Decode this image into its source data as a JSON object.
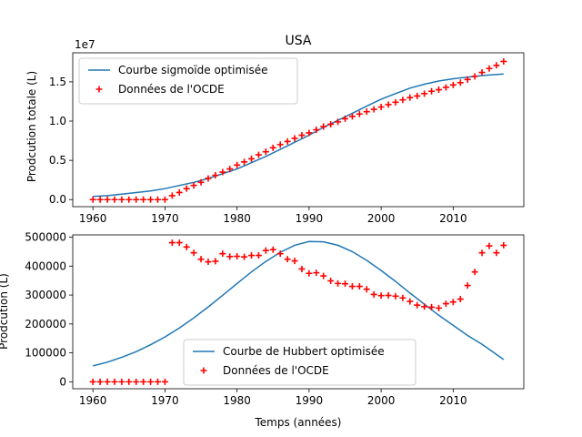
{
  "figure_title": "USA",
  "chart_data": [
    {
      "type": "line",
      "title": "USA",
      "xlabel": "",
      "ylabel": "Prodcution totale (L)",
      "y_multiplier_label": "1e7",
      "xlim": [
        1957.2,
        2019.8
      ],
      "ylim": [
        -0.09,
        1.87
      ],
      "y_unit_scale": 10000000,
      "xticks": [
        1960,
        1970,
        1980,
        1990,
        2000,
        2010
      ],
      "yticks": [
        0.0,
        0.5,
        1.0,
        1.5
      ],
      "ytick_labels": [
        "0.0",
        "0.5",
        "1.0",
        "1.5"
      ],
      "legend_position": "upper-left",
      "grid": false,
      "series": [
        {
          "name": "Courbe sigmoïde optimisée",
          "kind": "line",
          "color": "#1f77b4",
          "x": [
            1960,
            1962,
            1964,
            1966,
            1968,
            1970,
            1972,
            1974,
            1976,
            1978,
            1980,
            1982,
            1984,
            1986,
            1988,
            1990,
            1992,
            1994,
            1996,
            1998,
            2000,
            2002,
            2004,
            2006,
            2008,
            2010,
            2012,
            2014,
            2017
          ],
          "y": [
            0.04,
            0.05,
            0.07,
            0.09,
            0.11,
            0.14,
            0.18,
            0.22,
            0.27,
            0.33,
            0.39,
            0.47,
            0.55,
            0.64,
            0.73,
            0.82,
            0.92,
            1.01,
            1.1,
            1.19,
            1.28,
            1.35,
            1.42,
            1.47,
            1.51,
            1.54,
            1.56,
            1.58,
            1.6
          ]
        },
        {
          "name": "Données de l'OCDE",
          "kind": "marker",
          "marker": "+",
          "color": "#ff0000",
          "x": [
            1960,
            1961,
            1962,
            1963,
            1964,
            1965,
            1966,
            1967,
            1968,
            1969,
            1970,
            1971,
            1972,
            1973,
            1974,
            1975,
            1976,
            1977,
            1978,
            1979,
            1980,
            1981,
            1982,
            1983,
            1984,
            1985,
            1986,
            1987,
            1988,
            1989,
            1990,
            1991,
            1992,
            1993,
            1994,
            1995,
            1996,
            1997,
            1998,
            1999,
            2000,
            2001,
            2002,
            2003,
            2004,
            2005,
            2006,
            2007,
            2008,
            2009,
            2010,
            2011,
            2012,
            2013,
            2014,
            2015,
            2016,
            2017
          ],
          "y": [
            0.0,
            0.0,
            0.0,
            0.0,
            0.0,
            0.0,
            0.0,
            0.0,
            0.0,
            0.0,
            0.0,
            0.05,
            0.09,
            0.14,
            0.18,
            0.22,
            0.27,
            0.31,
            0.35,
            0.39,
            0.44,
            0.48,
            0.52,
            0.57,
            0.61,
            0.66,
            0.7,
            0.74,
            0.78,
            0.82,
            0.85,
            0.89,
            0.93,
            0.96,
            0.99,
            1.03,
            1.06,
            1.09,
            1.12,
            1.15,
            1.18,
            1.21,
            1.24,
            1.27,
            1.3,
            1.32,
            1.35,
            1.38,
            1.4,
            1.43,
            1.46,
            1.49,
            1.53,
            1.57,
            1.62,
            1.67,
            1.71,
            1.76
          ]
        }
      ]
    },
    {
      "type": "line",
      "title": "",
      "xlabel": "Temps (années)",
      "ylabel": "Prodcution (L)",
      "xlim": [
        1957.2,
        2019.8
      ],
      "ylim": [
        -24000,
        508000
      ],
      "xticks": [
        1960,
        1970,
        1980,
        1990,
        2000,
        2010
      ],
      "yticks": [
        0,
        100000,
        200000,
        300000,
        400000,
        500000
      ],
      "ytick_labels": [
        "0",
        "100000",
        "200000",
        "300000",
        "400000",
        "500000"
      ],
      "legend_position": "lower-center",
      "grid": false,
      "series": [
        {
          "name": "Courbe de Hubbert optimisée",
          "kind": "line",
          "color": "#1f77b4",
          "x": [
            1960,
            1962,
            1964,
            1966,
            1968,
            1970,
            1972,
            1974,
            1976,
            1978,
            1980,
            1982,
            1984,
            1986,
            1988,
            1990,
            1992,
            1994,
            1996,
            1998,
            2000,
            2002,
            2004,
            2006,
            2008,
            2010,
            2012,
            2014,
            2017
          ],
          "y": [
            55000,
            68000,
            85000,
            104000,
            128000,
            155000,
            186000,
            221000,
            259000,
            299000,
            340000,
            380000,
            416000,
            448000,
            472000,
            485000,
            484000,
            472000,
            450000,
            420000,
            385000,
            347000,
            307000,
            268000,
            230000,
            195000,
            160000,
            130000,
            77000
          ]
        },
        {
          "name": "Données de l'OCDE",
          "kind": "marker",
          "marker": "+",
          "color": "#ff0000",
          "x": [
            1960,
            1961,
            1962,
            1963,
            1964,
            1965,
            1966,
            1967,
            1968,
            1969,
            1970,
            1971,
            1972,
            1973,
            1974,
            1975,
            1976,
            1977,
            1978,
            1979,
            1980,
            1981,
            1982,
            1983,
            1984,
            1985,
            1986,
            1987,
            1988,
            1989,
            1990,
            1991,
            1992,
            1993,
            1994,
            1995,
            1996,
            1997,
            1998,
            1999,
            2000,
            2001,
            2002,
            2003,
            2004,
            2005,
            2006,
            2007,
            2008,
            2009,
            2010,
            2011,
            2012,
            2013,
            2014,
            2015,
            2016,
            2017
          ],
          "y": [
            0,
            0,
            0,
            0,
            0,
            0,
            0,
            0,
            0,
            0,
            0,
            481000,
            481000,
            466000,
            446000,
            424000,
            415000,
            417000,
            443000,
            433000,
            434000,
            432000,
            437000,
            437000,
            454000,
            457000,
            443000,
            424000,
            418000,
            390000,
            375000,
            377000,
            366000,
            349000,
            340000,
            339000,
            330000,
            330000,
            320000,
            302000,
            298000,
            299000,
            296000,
            290000,
            278000,
            265000,
            260000,
            258000,
            255000,
            270000,
            276000,
            286000,
            333000,
            380000,
            446000,
            470000,
            446000,
            472000
          ]
        }
      ]
    }
  ]
}
